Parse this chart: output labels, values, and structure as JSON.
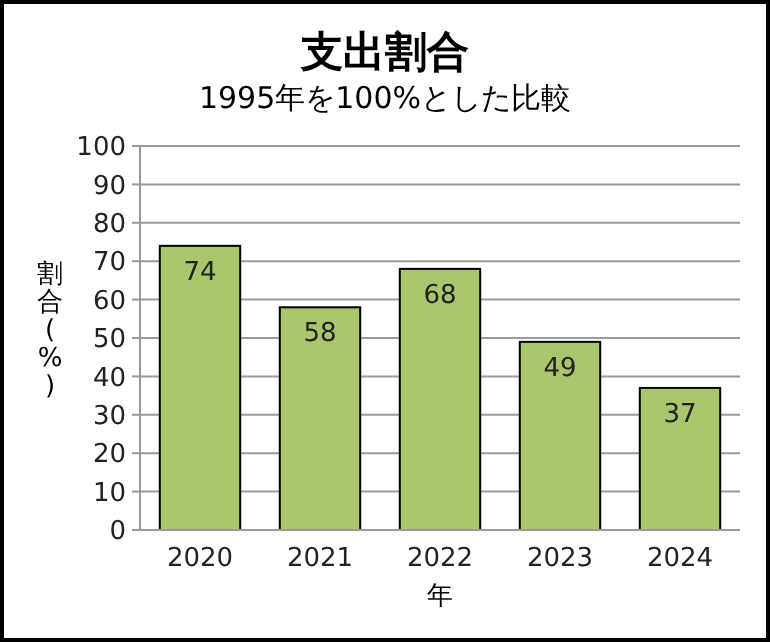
{
  "chart_data": {
    "type": "bar",
    "title": "支出割合",
    "subtitle": "1995年を100%とした比較",
    "xlabel": "年",
    "ylabel": "割合(%)",
    "categories": [
      "2020",
      "2021",
      "2022",
      "2023",
      "2024"
    ],
    "values": [
      74,
      58,
      68,
      49,
      37
    ],
    "color": "#a9c66a",
    "ylim": [
      0,
      100
    ],
    "yticks": [
      0,
      10,
      20,
      30,
      40,
      50,
      60,
      70,
      80,
      90,
      100
    ],
    "grid": "y",
    "data_labels": true
  }
}
